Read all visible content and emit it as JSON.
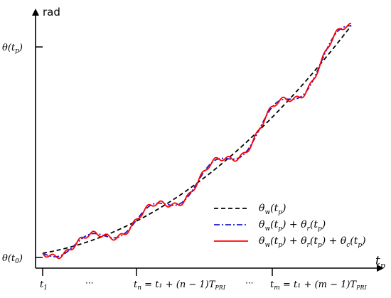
{
  "axes": {
    "y_label": "rad",
    "x_label_main": "t",
    "x_label_sub": "p"
  },
  "y_ticks": [
    {
      "main": "θ(t",
      "sub": "p",
      "tail": ")"
    },
    {
      "main": "θ(t",
      "sub": "0",
      "tail": ")"
    }
  ],
  "x_ticks": [
    {
      "main": "t",
      "sub": "1",
      "rest": ""
    },
    {
      "main": "t",
      "sub": "n",
      "rest": " = t₁ + (n − 1)T",
      "rest_sub": "PRI"
    },
    {
      "main": "t",
      "sub": "m",
      "rest": " = t₁ + (m − 1)T",
      "rest_sub": "PRI"
    }
  ],
  "ellipses": [
    "···",
    "···"
  ],
  "legend": [
    {
      "label": "θw(tp)",
      "color": "#000000",
      "style": "dashed"
    },
    {
      "label": "θw(tp) + θr(tp)",
      "color": "#1a1acc",
      "style": "dashdot"
    },
    {
      "label": "θw(tp) + θr(tp) + θc(tp)",
      "color": "#ff0000",
      "style": "solid"
    }
  ],
  "colors": {
    "trend": "#000000",
    "wobble": "#1a1acc",
    "full": "#ff0000"
  }
}
